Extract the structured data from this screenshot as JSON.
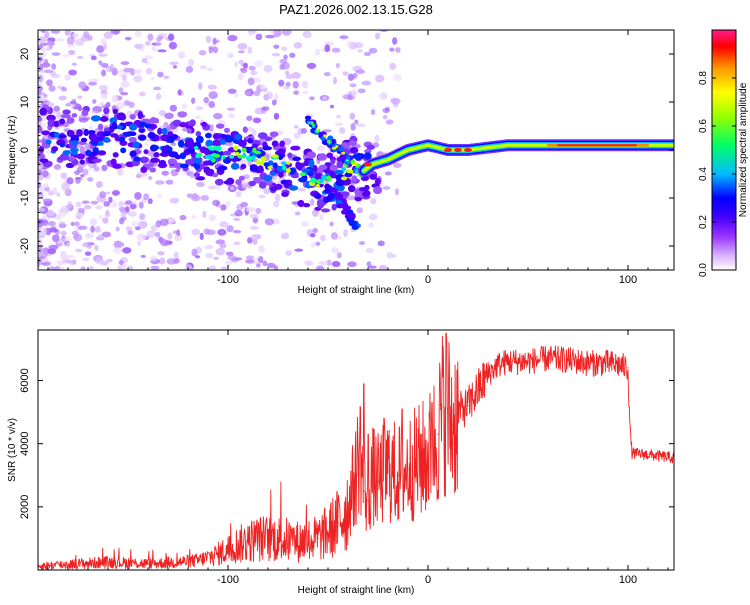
{
  "title": "PAZ1.2026.002.13.15.G28",
  "colors": {
    "snr_line": "#ee2222",
    "ridge_core": "#ff1a1a",
    "frame": "#000000"
  },
  "chart_data": [
    {
      "type": "heatmap",
      "name": "spectrogram",
      "xlabel": "Height of straight line (km)",
      "ylabel": "Frequency (Hz)",
      "xlim": [
        -195,
        123
      ],
      "ylim": [
        -25,
        25
      ],
      "xticks": [
        -100,
        0,
        100
      ],
      "yticks": [
        -20,
        -10,
        0,
        10,
        20
      ],
      "colorbar": {
        "label": "Normalized spectral amplitude",
        "range": [
          0,
          1
        ],
        "ticks": [
          "0.0",
          "0.2",
          "0.4",
          "0.6",
          "0.8"
        ],
        "tick_values": [
          0,
          0.2,
          0.4,
          0.6,
          0.8
        ],
        "colormap": [
          "#ffffff",
          "#c080ff",
          "#6600ff",
          "#0000ff",
          "#00ccff",
          "#00ff66",
          "#66ff00",
          "#ffff00",
          "#ff9900",
          "#ff0000",
          "#ff1a8c"
        ]
      },
      "main_ridge": [
        {
          "x": -195,
          "f": 3
        },
        {
          "x": -180,
          "f": 2
        },
        {
          "x": -165,
          "f": 3
        },
        {
          "x": -150,
          "f": 2
        },
        {
          "x": -135,
          "f": 1
        },
        {
          "x": -120,
          "f": 0
        },
        {
          "x": -105,
          "f": -1
        },
        {
          "x": -90,
          "f": -1
        },
        {
          "x": -80,
          "f": -2
        },
        {
          "x": -70,
          "f": -4
        },
        {
          "x": -60,
          "f": -6
        },
        {
          "x": -50,
          "f": -7
        },
        {
          "x": -42,
          "f": -5
        },
        {
          "x": -38,
          "f": -3
        },
        {
          "x": -34,
          "f": -5
        },
        {
          "x": -28,
          "f": -3
        },
        {
          "x": -20,
          "f": -2
        },
        {
          "x": -10,
          "f": 0
        },
        {
          "x": 0,
          "f": 1
        },
        {
          "x": 10,
          "f": 0
        },
        {
          "x": 20,
          "f": 0
        },
        {
          "x": 40,
          "f": 1
        },
        {
          "x": 60,
          "f": 1
        },
        {
          "x": 80,
          "f": 1
        },
        {
          "x": 100,
          "f": 1
        },
        {
          "x": 115,
          "f": 1
        },
        {
          "x": 123,
          "f": 1
        }
      ],
      "side_branch": [
        {
          "x": -60,
          "f": 6
        },
        {
          "x": -55,
          "f": 4
        },
        {
          "x": -50,
          "f": 2
        },
        {
          "x": -45,
          "f": 0
        },
        {
          "x": -40,
          "f": -2
        }
      ],
      "falling_branch": [
        {
          "x": -52,
          "f": -8
        },
        {
          "x": -46,
          "f": -10
        },
        {
          "x": -40,
          "f": -13
        },
        {
          "x": -35,
          "f": -16
        }
      ]
    },
    {
      "type": "line",
      "name": "snr",
      "xlabel": "Height of straight line (km)",
      "ylabel": "SNR (10 * v/v)",
      "xlim": [
        -195,
        123
      ],
      "ylim": [
        0,
        7600
      ],
      "xticks": [
        -100,
        0,
        100
      ],
      "yticks": [
        2000,
        4000,
        6000
      ],
      "series": [
        {
          "name": "SNR",
          "x": [
            -195,
            -180,
            -160,
            -140,
            -125,
            -115,
            -105,
            -95,
            -85,
            -75,
            -65,
            -55,
            -50,
            -45,
            -40,
            -36,
            -34,
            -32,
            -30,
            -28,
            -25,
            -20,
            -15,
            -10,
            -5,
            0,
            5,
            8,
            10,
            12,
            15,
            20,
            25,
            30,
            35,
            40,
            50,
            60,
            70,
            80,
            90,
            95,
            100,
            101,
            102,
            110,
            123
          ],
          "y": [
            120,
            180,
            250,
            200,
            250,
            300,
            500,
            800,
            1000,
            1000,
            900,
            1000,
            1200,
            1500,
            2000,
            3000,
            4000,
            2500,
            2200,
            3000,
            2800,
            3200,
            3000,
            3200,
            3400,
            3600,
            4300,
            5200,
            5000,
            4600,
            5000,
            5200,
            5700,
            6200,
            6500,
            6600,
            6600,
            6700,
            6650,
            6550,
            6550,
            6500,
            6400,
            4500,
            3700,
            3650,
            3550
          ]
        }
      ],
      "spikes": [
        {
          "x": -32,
          "y": 5900
        },
        {
          "x": -30,
          "y": 4300
        },
        {
          "x": -22,
          "y": 4800
        },
        {
          "x": -13,
          "y": 5100
        },
        {
          "x": 2,
          "y": 5300
        },
        {
          "x": 9,
          "y": 7500
        }
      ]
    }
  ]
}
